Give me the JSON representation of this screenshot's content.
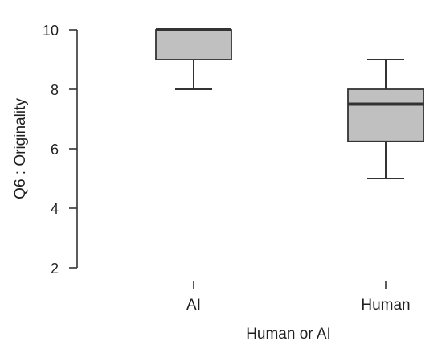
{
  "chart_data": {
    "type": "box",
    "xlabel": "Human or AI",
    "ylabel": "Q6 : Originality",
    "ylim": [
      2,
      10
    ],
    "yticks": [
      2,
      4,
      6,
      8,
      10
    ],
    "categories": [
      "AI",
      "Human"
    ],
    "boxes": [
      {
        "category": "AI",
        "whisker_low": 8,
        "q1": 9,
        "median": 10,
        "q3": 10,
        "whisker_high": 10
      },
      {
        "category": "Human",
        "whisker_low": 5,
        "q1": 6.25,
        "median": 7.5,
        "q3": 8,
        "whisker_high": 9
      }
    ],
    "grid": false,
    "colors": {
      "box_fill": "#c0c0c0",
      "box_stroke": "#333333",
      "median_stroke": "#333333",
      "whisker_stroke": "#333333"
    }
  }
}
